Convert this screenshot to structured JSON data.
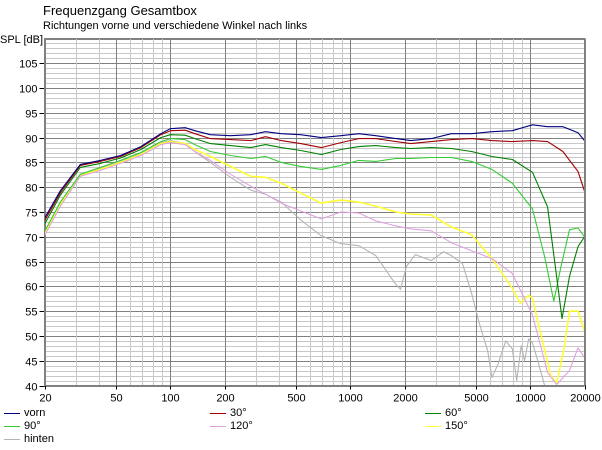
{
  "chart_data": {
    "type": "line",
    "title": "Frequenzgang Gesamtbox",
    "subtitle": "Richtungen vorne und verschiedene Winkel nach links",
    "ylabel": "SPL [dB]",
    "xlabel": "",
    "xscale": "log",
    "xlim": [
      20,
      20000
    ],
    "ylim": [
      40,
      110
    ],
    "grid": true,
    "legend_position": "bottom",
    "x_ticks": [
      20,
      50,
      100,
      200,
      500,
      1000,
      2000,
      5000,
      10000,
      20000
    ],
    "x_tick_labels": [
      "20",
      "50",
      "100",
      "200",
      "500",
      "1000",
      "2000",
      "5000",
      "10000",
      "20000"
    ],
    "y_ticks": [
      40,
      45,
      50,
      55,
      60,
      65,
      70,
      75,
      80,
      85,
      90,
      95,
      100,
      105
    ],
    "y_tick_labels": [
      "40",
      "45",
      "50",
      "55",
      "60",
      "65",
      "70",
      "75",
      "80",
      "85",
      "90",
      "95",
      "100",
      "105"
    ],
    "series": [
      {
        "name": "vorn",
        "color": "#000080",
        "points": [
          [
            20,
            73.7
          ],
          [
            24.5,
            79.3
          ],
          [
            31.6,
            84.6
          ],
          [
            40.9,
            85.4
          ],
          [
            52.9,
            86.4
          ],
          [
            68.6,
            88.2
          ],
          [
            88.5,
            90.8
          ],
          [
            100,
            91.8
          ],
          [
            121,
            92
          ],
          [
            137,
            91.4
          ],
          [
            167,
            90.6
          ],
          [
            216,
            90.4
          ],
          [
            280,
            90.6
          ],
          [
            338,
            91.2
          ],
          [
            413,
            90.8
          ],
          [
            530,
            90.6
          ],
          [
            690,
            90
          ],
          [
            887,
            90.4
          ],
          [
            1114,
            90.8
          ],
          [
            1385,
            90.4
          ],
          [
            1790,
            89.8
          ],
          [
            2170,
            89.4
          ],
          [
            2813,
            89.8
          ],
          [
            3640,
            90.8
          ],
          [
            4720,
            90.8
          ],
          [
            6120,
            91.2
          ],
          [
            7940,
            91.4
          ],
          [
            10280,
            92.6
          ],
          [
            12480,
            92.2
          ],
          [
            15170,
            92.2
          ],
          [
            18400,
            91
          ],
          [
            20000,
            89.4
          ]
        ]
      },
      {
        "name": "30°",
        "color": "#a00000",
        "points": [
          [
            20,
            73.2
          ],
          [
            24.5,
            78.9
          ],
          [
            31.6,
            84.4
          ],
          [
            40.9,
            85.2
          ],
          [
            52.9,
            86.2
          ],
          [
            68.6,
            88
          ],
          [
            88.5,
            90.6
          ],
          [
            100,
            91.4
          ],
          [
            121,
            91.5
          ],
          [
            137,
            90.8
          ],
          [
            167,
            89.8
          ],
          [
            216,
            89.6
          ],
          [
            280,
            89.4
          ],
          [
            338,
            90.2
          ],
          [
            413,
            89.4
          ],
          [
            530,
            88.8
          ],
          [
            690,
            88
          ],
          [
            887,
            89
          ],
          [
            1114,
            89.8
          ],
          [
            1385,
            89.8
          ],
          [
            1790,
            89.2
          ],
          [
            2170,
            88.8
          ],
          [
            2813,
            89.2
          ],
          [
            3640,
            89.6
          ],
          [
            4720,
            89.8
          ],
          [
            6120,
            89.4
          ],
          [
            7940,
            89.2
          ],
          [
            10280,
            89.4
          ],
          [
            12480,
            89.2
          ],
          [
            15170,
            87.2
          ],
          [
            18400,
            83.2
          ],
          [
            20000,
            79.2
          ]
        ]
      },
      {
        "name": "60°",
        "color": "#008000",
        "points": [
          [
            20,
            72.5
          ],
          [
            24.5,
            78.4
          ],
          [
            31.6,
            84
          ],
          [
            40.9,
            84.8
          ],
          [
            52.9,
            85.9
          ],
          [
            68.6,
            87.6
          ],
          [
            88.5,
            90
          ],
          [
            100,
            90.6
          ],
          [
            121,
            90.5
          ],
          [
            137,
            89.8
          ],
          [
            167,
            88.8
          ],
          [
            216,
            88.4
          ],
          [
            280,
            88
          ],
          [
            338,
            88.6
          ],
          [
            413,
            88
          ],
          [
            530,
            87.4
          ],
          [
            690,
            86.6
          ],
          [
            887,
            87.6
          ],
          [
            1114,
            88.2
          ],
          [
            1385,
            88.4
          ],
          [
            1790,
            88
          ],
          [
            2170,
            87.8
          ],
          [
            2813,
            88
          ],
          [
            3640,
            87.8
          ],
          [
            4720,
            87.2
          ],
          [
            6120,
            86.2
          ],
          [
            7940,
            85.6
          ],
          [
            10280,
            83
          ],
          [
            12480,
            76
          ],
          [
            14000,
            62
          ],
          [
            15000,
            53.5
          ],
          [
            16500,
            62
          ],
          [
            18400,
            68
          ],
          [
            20000,
            70
          ]
        ]
      },
      {
        "name": "90°",
        "color": "#33cc33",
        "points": [
          [
            20,
            71
          ],
          [
            24.5,
            77
          ],
          [
            31.6,
            82.6
          ],
          [
            40.9,
            84
          ],
          [
            52.9,
            85.4
          ],
          [
            68.6,
            87
          ],
          [
            88.5,
            89.2
          ],
          [
            100,
            89.8
          ],
          [
            121,
            89.6
          ],
          [
            137,
            88.6
          ],
          [
            167,
            87.2
          ],
          [
            216,
            86.4
          ],
          [
            280,
            85.8
          ],
          [
            338,
            86.2
          ],
          [
            413,
            85
          ],
          [
            530,
            84.2
          ],
          [
            690,
            83.6
          ],
          [
            887,
            84.4
          ],
          [
            1114,
            85.4
          ],
          [
            1385,
            85.2
          ],
          [
            1790,
            85.8
          ],
          [
            2170,
            85.8
          ],
          [
            2813,
            86
          ],
          [
            3640,
            86
          ],
          [
            4720,
            85.2
          ],
          [
            6120,
            83.6
          ],
          [
            7940,
            80.8
          ],
          [
            10280,
            75.6
          ],
          [
            12000,
            66
          ],
          [
            13500,
            57
          ],
          [
            14800,
            64
          ],
          [
            16500,
            71.4
          ],
          [
            18400,
            71.8
          ],
          [
            20000,
            70
          ]
        ]
      },
      {
        "name": "120°",
        "color": "#e0a0e0",
        "points": [
          [
            20,
            70.2
          ],
          [
            24.5,
            76.2
          ],
          [
            31.6,
            82.2
          ],
          [
            40.9,
            83.4
          ],
          [
            52.9,
            84.8
          ],
          [
            68.6,
            86.4
          ],
          [
            88.5,
            88.6
          ],
          [
            100,
            89
          ],
          [
            121,
            88.6
          ],
          [
            137,
            87.2
          ],
          [
            167,
            85.4
          ],
          [
            216,
            82.6
          ],
          [
            280,
            80.2
          ],
          [
            338,
            78.6
          ],
          [
            413,
            76.8
          ],
          [
            530,
            75.2
          ],
          [
            690,
            73.6
          ],
          [
            887,
            75
          ],
          [
            1114,
            74.8
          ],
          [
            1385,
            73.2
          ],
          [
            1790,
            72.2
          ],
          [
            2170,
            71.6
          ],
          [
            2813,
            71.2
          ],
          [
            3640,
            68.8
          ],
          [
            4720,
            67.2
          ],
          [
            6120,
            65.6
          ],
          [
            7940,
            62.6
          ],
          [
            10280,
            54.2
          ],
          [
            12480,
            42.6
          ],
          [
            14000,
            40.2
          ],
          [
            16500,
            43
          ],
          [
            18400,
            47.6
          ],
          [
            20000,
            45.6
          ]
        ]
      },
      {
        "name": "150°",
        "color": "#ffff33",
        "points": [
          [
            20,
            70.6
          ],
          [
            24.5,
            76.6
          ],
          [
            31.6,
            82.4
          ],
          [
            40.9,
            83.6
          ],
          [
            52.9,
            85
          ],
          [
            68.6,
            86.6
          ],
          [
            88.5,
            88.8
          ],
          [
            100,
            89.2
          ],
          [
            121,
            88.8
          ],
          [
            137,
            87.6
          ],
          [
            167,
            86.2
          ],
          [
            216,
            84.2
          ],
          [
            280,
            82.2
          ],
          [
            338,
            82
          ],
          [
            413,
            80.8
          ],
          [
            530,
            78.8
          ],
          [
            690,
            76.8
          ],
          [
            887,
            77.4
          ],
          [
            1114,
            77
          ],
          [
            1385,
            76.2
          ],
          [
            1790,
            75
          ],
          [
            2170,
            74.6
          ],
          [
            2813,
            74.4
          ],
          [
            3640,
            72
          ],
          [
            4720,
            70.4
          ],
          [
            6120,
            65.6
          ],
          [
            7940,
            59.6
          ],
          [
            8800,
            56.6
          ],
          [
            9800,
            58.2
          ],
          [
            10280,
            57.6
          ],
          [
            11500,
            50
          ],
          [
            13000,
            42
          ],
          [
            14000,
            40.4
          ],
          [
            15500,
            48
          ],
          [
            16500,
            55
          ],
          [
            18400,
            55
          ],
          [
            20000,
            51
          ]
        ]
      },
      {
        "name": "hinten",
        "color": "#b4b4b4",
        "points": [
          [
            20,
            71
          ],
          [
            24.5,
            77
          ],
          [
            31.6,
            82.6
          ],
          [
            40.9,
            83.8
          ],
          [
            52.9,
            85.2
          ],
          [
            68.6,
            86.8
          ],
          [
            88.5,
            89
          ],
          [
            100,
            89.4
          ],
          [
            121,
            88.8
          ],
          [
            137,
            87.2
          ],
          [
            167,
            85
          ],
          [
            216,
            82
          ],
          [
            280,
            79.4
          ],
          [
            338,
            78.6
          ],
          [
            413,
            77
          ],
          [
            530,
            73.4
          ],
          [
            690,
            70.2
          ],
          [
            887,
            68.6
          ],
          [
            1114,
            68.2
          ],
          [
            1385,
            66.2
          ],
          [
            1790,
            60.4
          ],
          [
            1900,
            59.4
          ],
          [
            2050,
            64
          ],
          [
            2300,
            66.4
          ],
          [
            2813,
            65.2
          ],
          [
            3300,
            67
          ],
          [
            3640,
            66.2
          ],
          [
            4200,
            64.6
          ],
          [
            4720,
            58.6
          ],
          [
            5200,
            52.6
          ],
          [
            5800,
            47
          ],
          [
            6120,
            41.6
          ],
          [
            6600,
            44.2
          ],
          [
            7300,
            49
          ],
          [
            7940,
            47.4
          ],
          [
            8400,
            41
          ],
          [
            8900,
            48
          ],
          [
            9300,
            45
          ],
          [
            9800,
            49.4
          ],
          [
            10280,
            48.6
          ],
          [
            11000,
            45
          ],
          [
            12000,
            40
          ]
        ]
      }
    ]
  }
}
